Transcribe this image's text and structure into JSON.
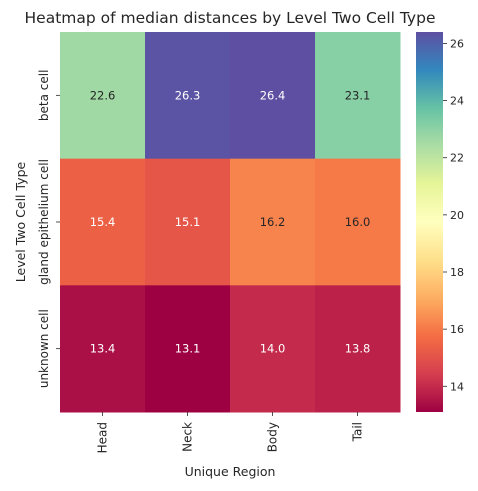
{
  "chart_data": {
    "type": "heatmap",
    "title": "Heatmap of median distances by Level Two Cell Type",
    "xlabel": "Unique Region",
    "ylabel": "Level Two Cell Type",
    "x_categories": [
      "Head",
      "Neck",
      "Body",
      "Tail"
    ],
    "y_categories": [
      "beta cell",
      "gland epithelium cell",
      "unknown cell"
    ],
    "values": [
      [
        22.6,
        26.3,
        26.4,
        23.1
      ],
      [
        15.4,
        15.1,
        16.2,
        16.0
      ],
      [
        13.4,
        13.1,
        14.0,
        13.8
      ]
    ],
    "value_format": "0.1f",
    "colormap": "Spectral",
    "colorbar": {
      "range": [
        13.1,
        26.4
      ],
      "ticks": [
        14,
        16,
        18,
        20,
        22,
        24,
        26
      ],
      "tick_labels": [
        "14",
        "16",
        "18",
        "20",
        "22",
        "24",
        "26"
      ]
    },
    "colors": {
      "text_dark": "#262626",
      "text_light": "#ffffff"
    }
  }
}
